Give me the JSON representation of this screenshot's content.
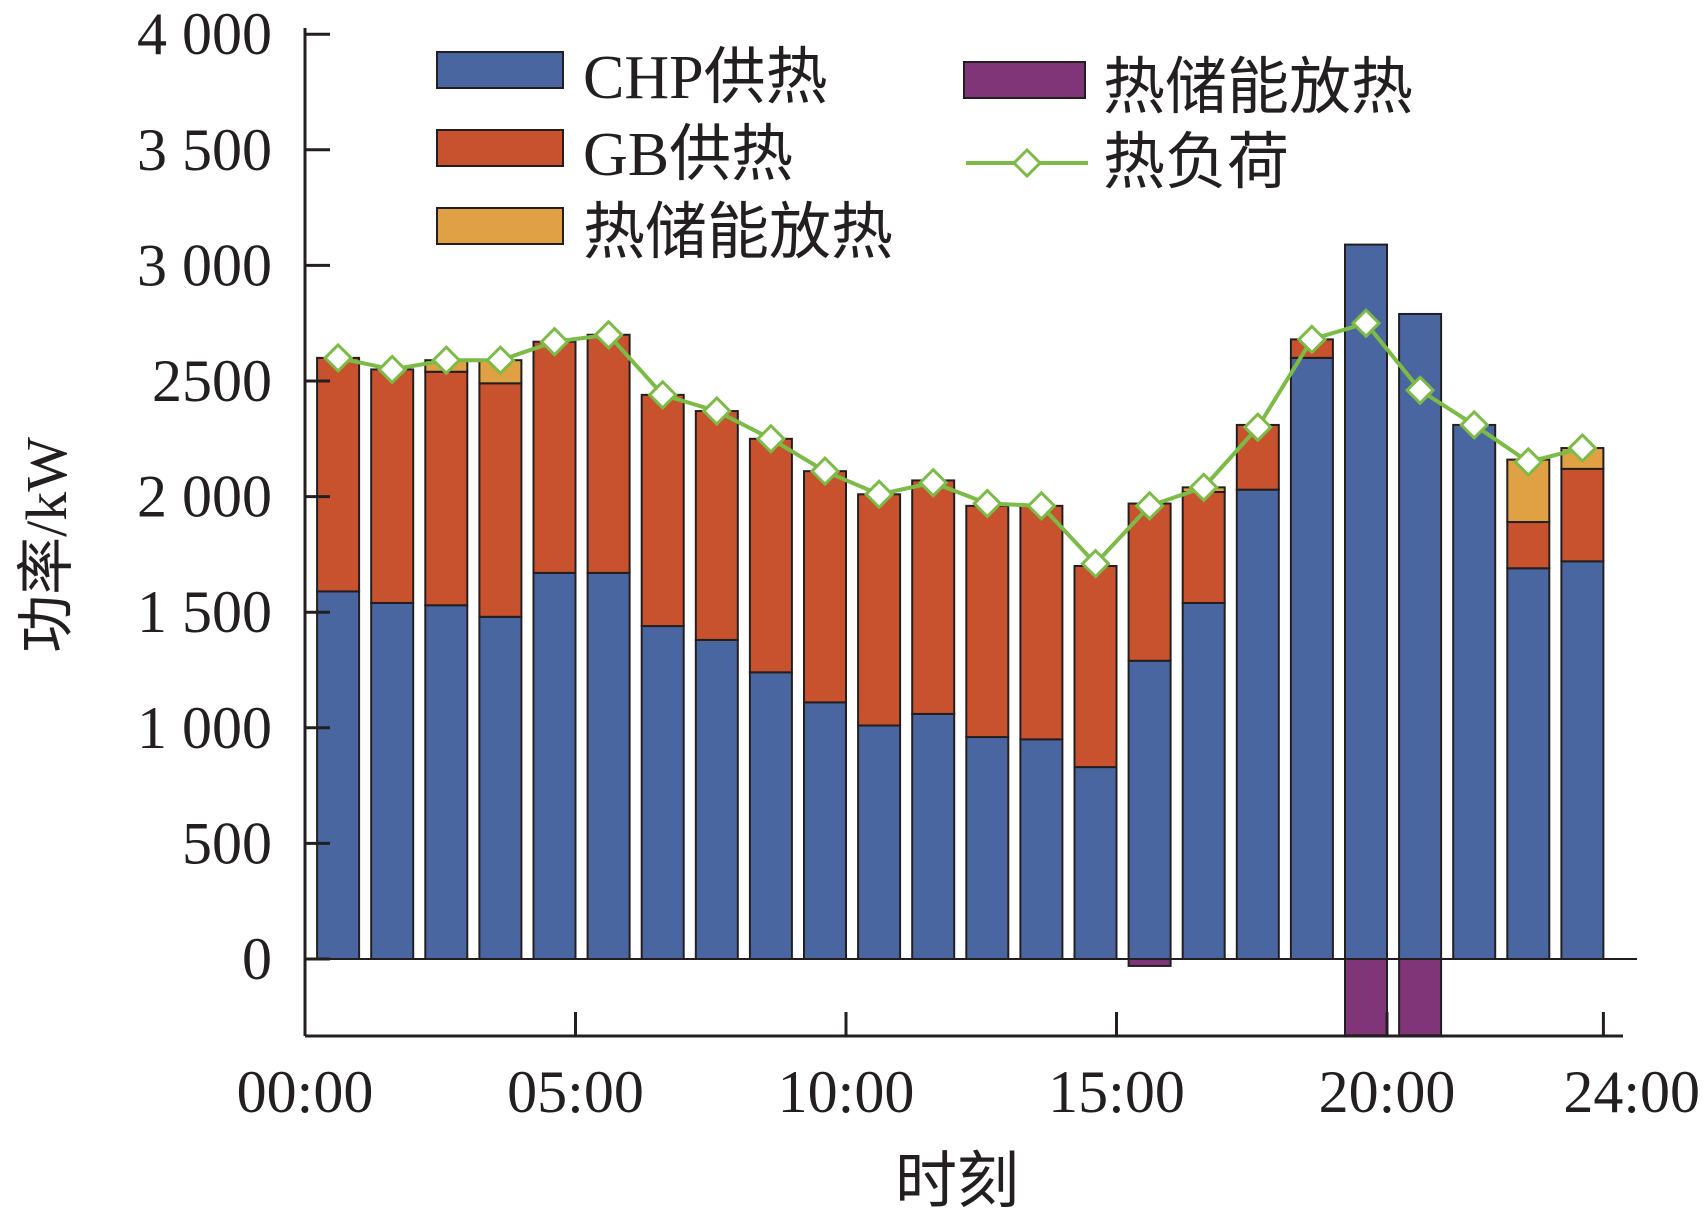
{
  "chart_data": {
    "type": "bar",
    "stacked": true,
    "title": "",
    "xlabel": "时刻",
    "ylabel": "功率/kW",
    "ylim": [
      -330,
      4000
    ],
    "xlim": [
      0,
      24
    ],
    "y_ticks": [
      {
        "value": 0,
        "label": "0"
      },
      {
        "value": 500,
        "label": "500"
      },
      {
        "value": 1000,
        "label": "1 000"
      },
      {
        "value": 1500,
        "label": "1 500"
      },
      {
        "value": 2000,
        "label": "2 000"
      },
      {
        "value": 2500,
        "label": "2500"
      },
      {
        "value": 3000,
        "label": "3 000"
      },
      {
        "value": 3500,
        "label": "3 500"
      },
      {
        "value": 4000,
        "label": "4 000"
      }
    ],
    "x_ticks": [
      {
        "value": 0,
        "label": "00:00"
      },
      {
        "value": 5,
        "label": "05:00"
      },
      {
        "value": 10,
        "label": "10:00"
      },
      {
        "value": 15,
        "label": "15:00"
      },
      {
        "value": 20,
        "label": "20:00"
      },
      {
        "value": 24,
        "label": "24:00"
      }
    ],
    "hours": [
      1,
      2,
      3,
      4,
      5,
      6,
      7,
      8,
      9,
      10,
      11,
      12,
      13,
      14,
      15,
      16,
      17,
      18,
      19,
      20,
      21,
      22,
      23,
      24
    ],
    "series": [
      {
        "name": "CHP供热",
        "color": "#4a66a0",
        "values": [
          1590,
          1540,
          1530,
          1480,
          1670,
          1670,
          1440,
          1380,
          1240,
          1110,
          1010,
          1060,
          960,
          950,
          830,
          1290,
          1540,
          2030,
          2600,
          3090,
          2790,
          2310,
          1690,
          1720
        ]
      },
      {
        "name": "GB供热",
        "color": "#c8522d",
        "values": [
          1010,
          1010,
          1010,
          1010,
          1000,
          1030,
          1000,
          990,
          1010,
          1000,
          1000,
          1010,
          1000,
          1010,
          870,
          680,
          480,
          280,
          80,
          0,
          0,
          0,
          200,
          400
        ]
      },
      {
        "name": "热储能放热",
        "color": "#e0a144",
        "values": [
          0,
          0,
          50,
          100,
          0,
          0,
          0,
          0,
          0,
          0,
          0,
          0,
          0,
          0,
          0,
          0,
          20,
          0,
          0,
          0,
          0,
          0,
          270,
          90
        ]
      },
      {
        "name": "热储能放热",
        "color": "#7f3578",
        "values": [
          0,
          0,
          0,
          0,
          0,
          0,
          0,
          0,
          0,
          0,
          0,
          0,
          0,
          0,
          0,
          -30,
          0,
          0,
          0,
          -330,
          -330,
          0,
          0,
          0
        ]
      }
    ],
    "line": {
      "name": "热负荷",
      "color": "#7cbb45",
      "values": [
        2600,
        2550,
        2590,
        2590,
        2670,
        2700,
        2440,
        2370,
        2250,
        2110,
        2010,
        2060,
        1970,
        1960,
        1710,
        1960,
        2040,
        2300,
        2680,
        2750,
        2460,
        2310,
        2150,
        2210
      ]
    },
    "legend_position": "top"
  }
}
